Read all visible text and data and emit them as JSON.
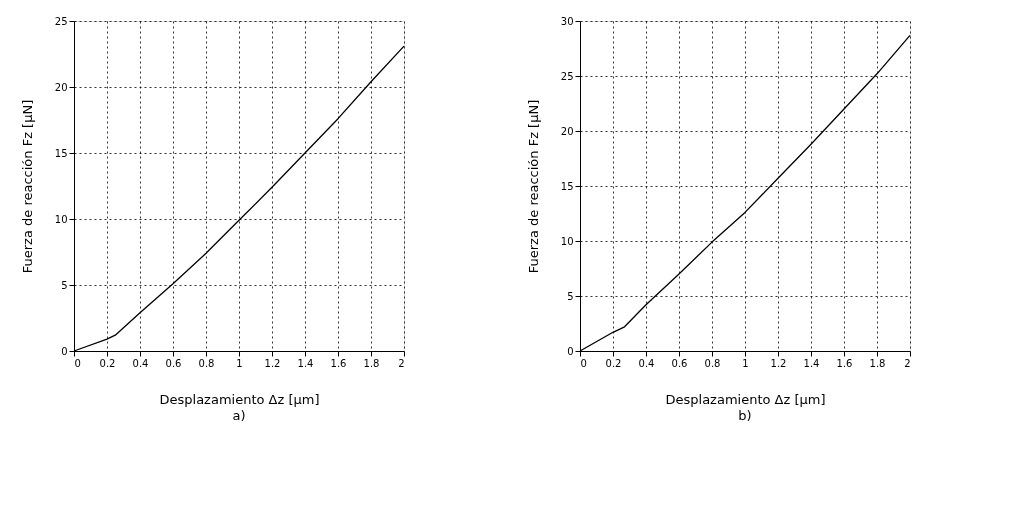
{
  "chart_data": [
    {
      "type": "line",
      "title": "a)",
      "xlabel": "Desplazamiento Δz [μm]",
      "ylabel": "Fuerza de reacción Fz [μN]",
      "x": [
        0,
        0.2,
        0.25,
        0.4,
        0.6,
        0.8,
        1.0,
        1.2,
        1.4,
        1.6,
        1.8,
        2.0
      ],
      "series": [
        {
          "color": "#000000",
          "values": [
            0,
            0.9,
            1.2,
            2.9,
            5.1,
            7.4,
            9.9,
            12.4,
            15.0,
            17.6,
            20.4,
            23.1
          ]
        }
      ],
      "xlim": [
        0,
        2
      ],
      "ylim": [
        0,
        25
      ],
      "xticks": [
        0,
        0.2,
        0.4,
        0.6,
        0.8,
        1,
        1.2,
        1.4,
        1.6,
        1.8,
        2
      ],
      "yticks": [
        0,
        5,
        10,
        15,
        20,
        25
      ],
      "grid": true
    },
    {
      "type": "line",
      "title": "b)",
      "xlabel": "Desplazamiento Δz [μm]",
      "ylabel": "Fuerza de reacción Fz [μN]",
      "x": [
        0,
        0.2,
        0.27,
        0.4,
        0.6,
        0.8,
        1.0,
        1.2,
        1.4,
        1.6,
        1.8,
        2.0
      ],
      "series": [
        {
          "color": "#000000",
          "values": [
            0,
            1.7,
            2.2,
            4.2,
            7.0,
            9.9,
            12.6,
            15.7,
            18.8,
            22.0,
            25.2,
            28.7
          ]
        }
      ],
      "xlim": [
        0,
        2
      ],
      "ylim": [
        0,
        30
      ],
      "xticks": [
        0,
        0.2,
        0.4,
        0.6,
        0.8,
        1,
        1.2,
        1.4,
        1.6,
        1.8,
        2
      ],
      "yticks": [
        0,
        5,
        10,
        15,
        20,
        25,
        30
      ],
      "grid": true
    }
  ]
}
